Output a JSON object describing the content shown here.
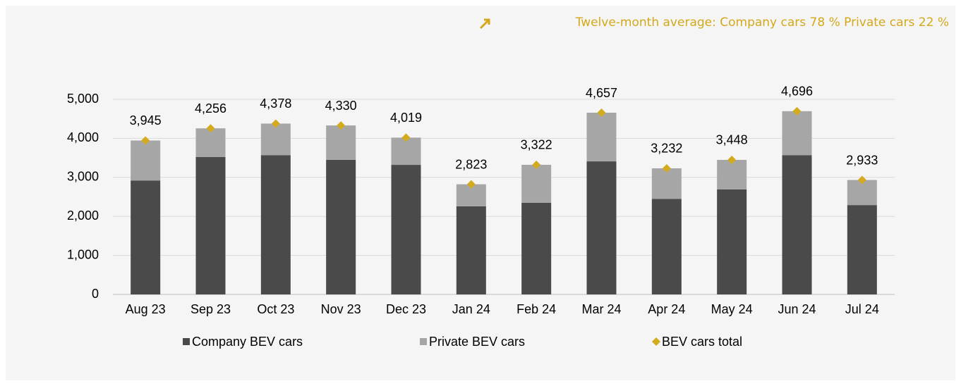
{
  "chart_data": {
    "type": "bar",
    "stacked": true,
    "title": "Twelve-month average: Company cars 78 % Private cars 22 %",
    "title_color": "#d4a81a",
    "categories": [
      "Aug 23",
      "Sep 23",
      "Oct 23",
      "Nov 23",
      "Dec 23",
      "Jan 24",
      "Feb 24",
      "Mar 24",
      "Apr 24",
      "May 24",
      "Jun 24",
      "Jul 24"
    ],
    "series": [
      {
        "name": "Company BEV cars",
        "type": "bar",
        "color": "#4a4a4a",
        "values": [
          2920,
          3520,
          3570,
          3450,
          3320,
          2260,
          2350,
          3410,
          2450,
          2690,
          3570,
          2290
        ]
      },
      {
        "name": "Private BEV cars",
        "type": "bar",
        "color": "#a6a6a6",
        "values": [
          1025,
          736,
          808,
          880,
          699,
          563,
          972,
          1247,
          782,
          758,
          1126,
          643
        ]
      },
      {
        "name": "BEV cars total",
        "type": "marker",
        "color": "#d4aa1e",
        "values": [
          3945,
          4256,
          4378,
          4330,
          4019,
          2823,
          3322,
          4657,
          3232,
          3448,
          4696,
          2933
        ],
        "value_labels": [
          "3,945",
          "4,256",
          "4,378",
          "4,330",
          "4,019",
          "2,823",
          "3,322",
          "4,657",
          "3,232",
          "3,448",
          "4,696",
          "2,933"
        ]
      }
    ],
    "ylim": [
      0,
      5000
    ],
    "yticks": [
      0,
      {
        "value": 1000,
        "label": "1,000"
      },
      {
        "value": 2000,
        "label": "2,000"
      },
      {
        "value": 3000,
        "label": "3,000"
      },
      {
        "value": 4000,
        "label": "4,000"
      },
      {
        "value": 5000,
        "label": "5,000"
      }
    ],
    "grid": true,
    "legend": "bottom"
  }
}
